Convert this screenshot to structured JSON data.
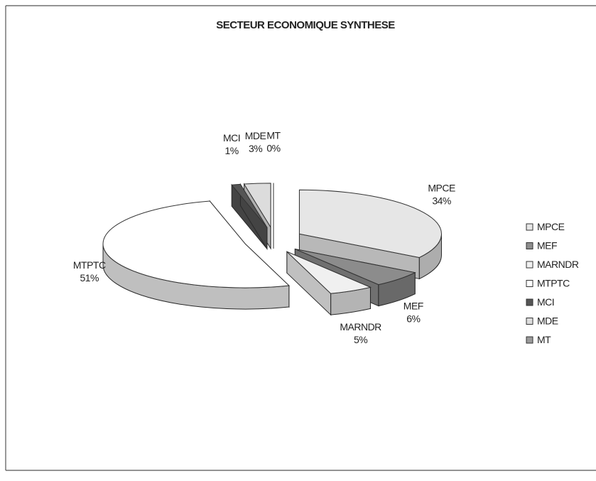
{
  "chart_data": {
    "type": "pie",
    "title": "SECTEUR ECONOMIQUE SYNTHESE",
    "categories": [
      "MPCE",
      "MEF",
      "MARNDR",
      "MTPTC",
      "MCI",
      "MDE",
      "MT"
    ],
    "values": [
      34,
      6,
      5,
      51,
      1,
      3,
      0
    ],
    "value_labels": [
      "34%",
      "6%",
      "5%",
      "51%",
      "1%",
      "3%",
      "0%"
    ],
    "colors": [
      "#e6e6e6",
      "#8c8c8c",
      "#f0f0f0",
      "#ffffff",
      "#555555",
      "#dcdcdc",
      "#9a9a9a"
    ],
    "legend": "right"
  }
}
